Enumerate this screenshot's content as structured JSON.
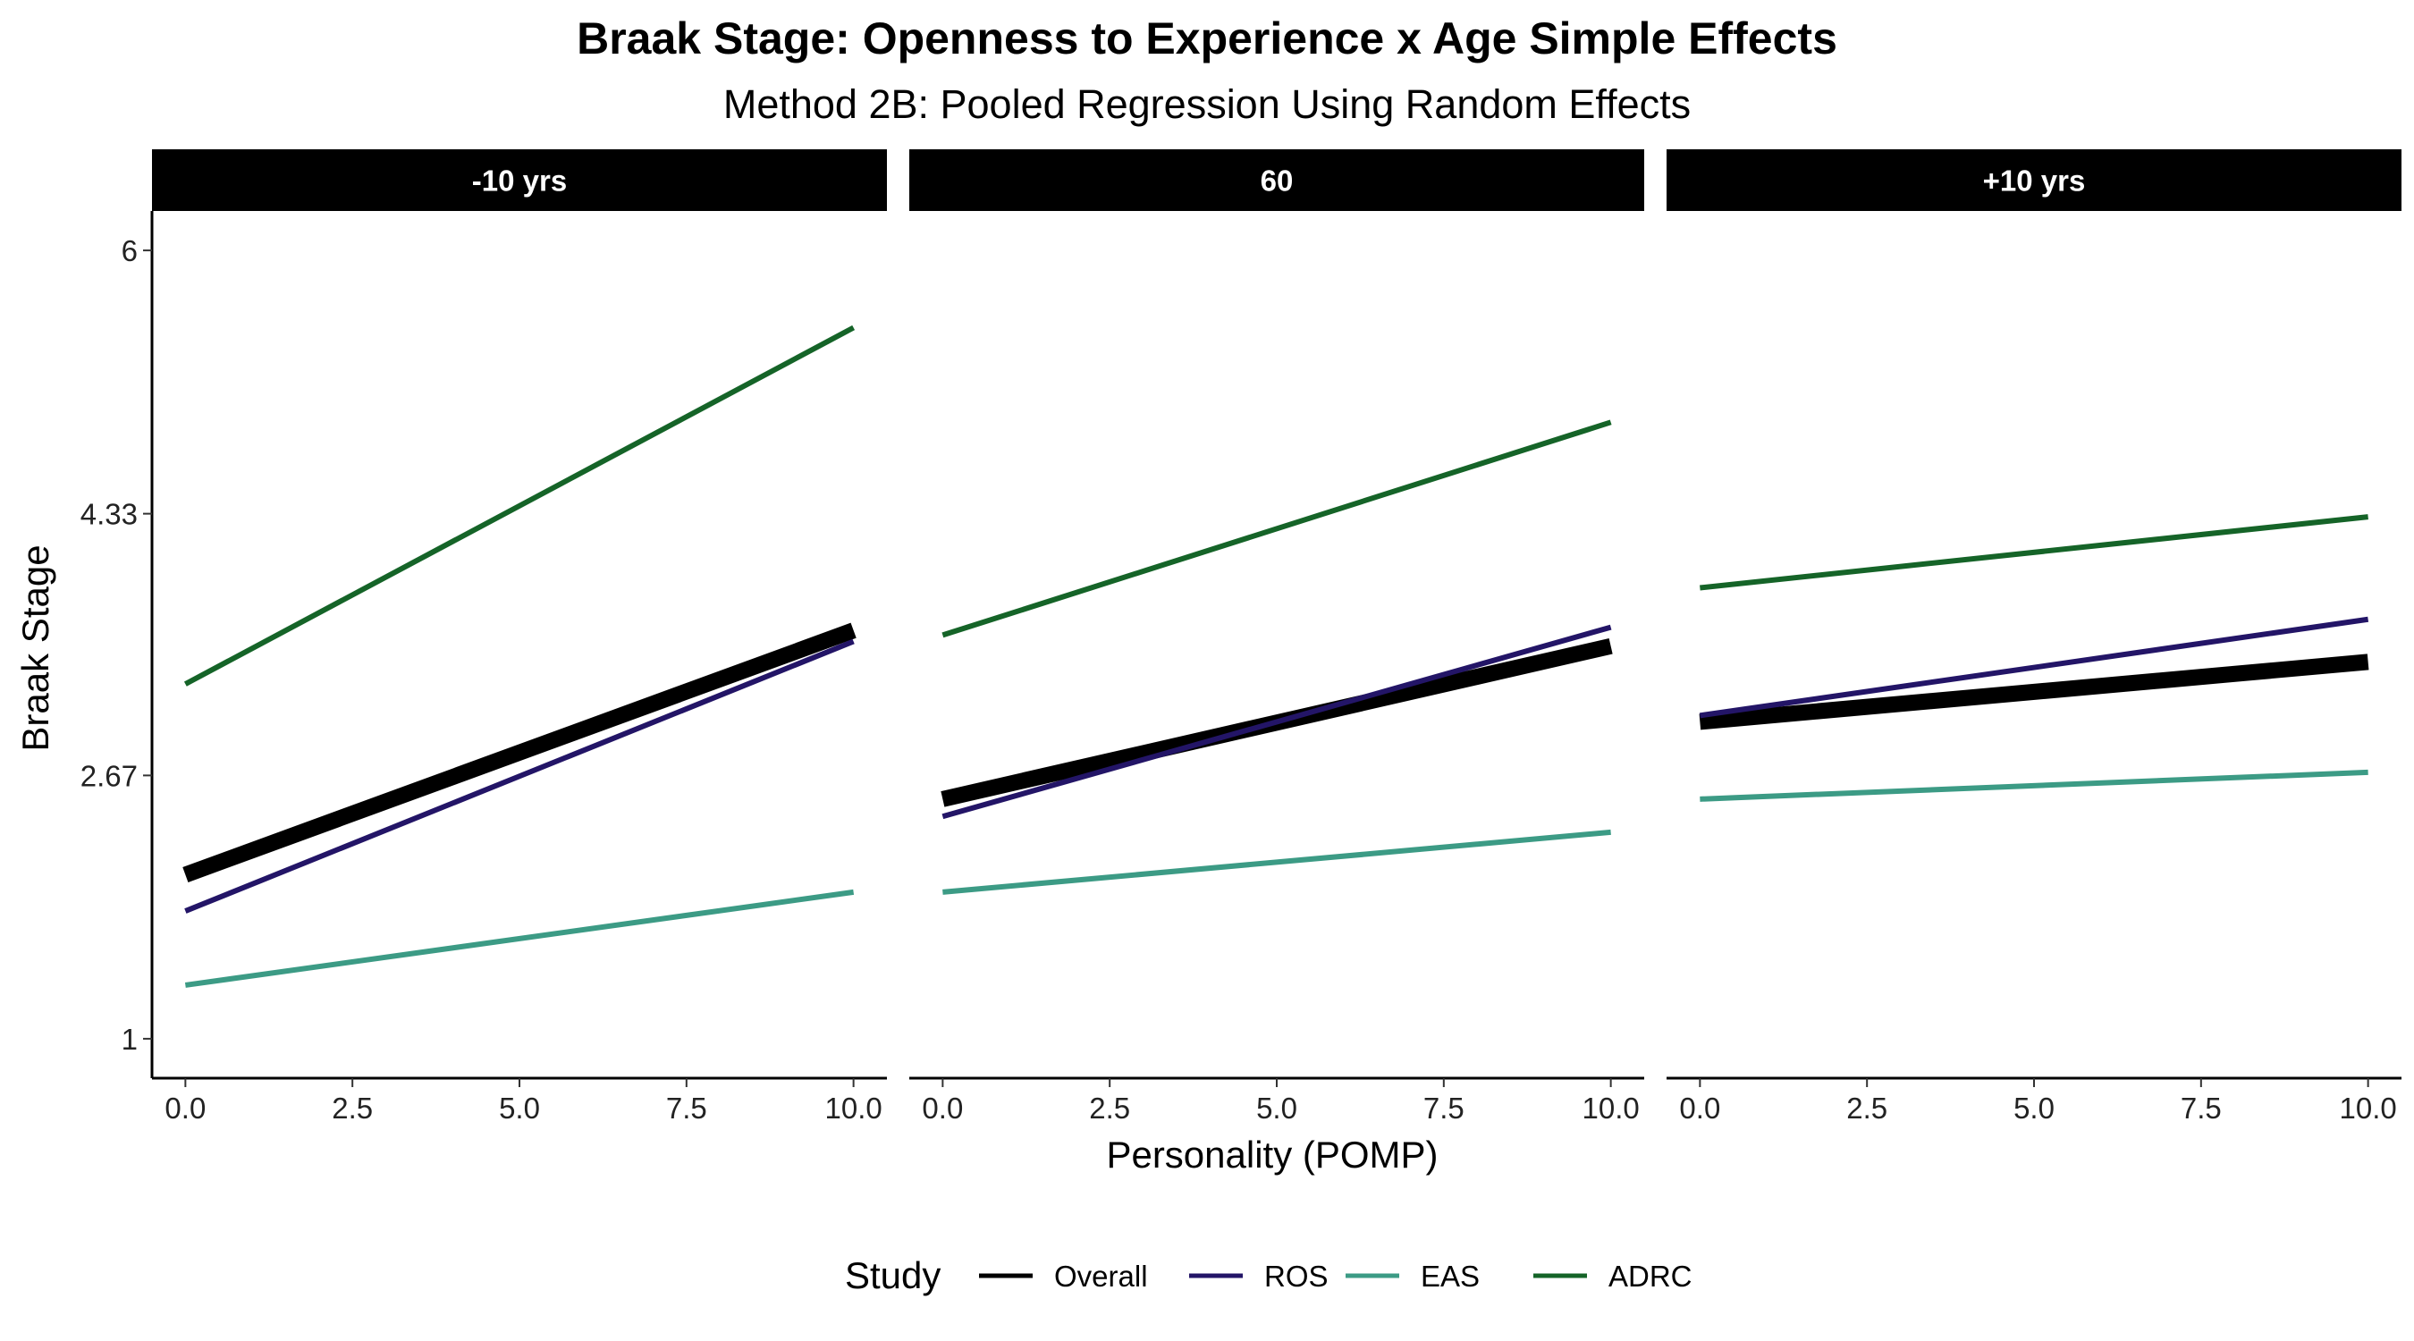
{
  "chart_data": {
    "type": "line",
    "title": "Braak Stage: Openness to Experience x Age Simple Effects",
    "subtitle": "Method 2B: Pooled Regression Using Random Effects",
    "xlabel": "Personality (POMP)",
    "ylabel": "Braak Stage",
    "xlim": [
      -0.5,
      10.5
    ],
    "ylim": [
      0.75,
      6.25
    ],
    "x_ticks": [
      "0.0",
      "2.5",
      "5.0",
      "7.5",
      "10.0"
    ],
    "y_ticks": [
      "1",
      "2.67",
      "4.33",
      "6"
    ],
    "grid": false,
    "legend": {
      "title": "Study",
      "position": "bottom",
      "entries": [
        "Overall",
        "ROS",
        "EAS",
        "ADRC"
      ]
    },
    "colors": {
      "Overall": "#000000",
      "ROS": "#231567",
      "EAS": "#3c9b85",
      "ADRC": "#156428",
      "strip_background": "#000000",
      "strip_text": "#ffffff"
    },
    "panels": [
      {
        "label": "-10 yrs",
        "series": [
          {
            "name": "ADRC",
            "x": [
              0,
              10
            ],
            "y": [
              3.25,
              5.51
            ]
          },
          {
            "name": "Overall",
            "x": [
              0,
              10
            ],
            "y": [
              2.04,
              3.59
            ]
          },
          {
            "name": "ROS",
            "x": [
              0,
              10
            ],
            "y": [
              1.81,
              3.52
            ]
          },
          {
            "name": "EAS",
            "x": [
              0,
              10
            ],
            "y": [
              1.34,
              1.93
            ]
          }
        ]
      },
      {
        "label": "60",
        "series": [
          {
            "name": "ADRC",
            "x": [
              0,
              10
            ],
            "y": [
              3.56,
              4.91
            ]
          },
          {
            "name": "Overall",
            "x": [
              0,
              10
            ],
            "y": [
              2.52,
              3.49
            ]
          },
          {
            "name": "ROS",
            "x": [
              0,
              10
            ],
            "y": [
              2.41,
              3.61
            ]
          },
          {
            "name": "EAS",
            "x": [
              0,
              10
            ],
            "y": [
              1.93,
              2.31
            ]
          }
        ]
      },
      {
        "label": "+10 yrs",
        "series": [
          {
            "name": "ADRC",
            "x": [
              0,
              10
            ],
            "y": [
              3.86,
              4.31
            ]
          },
          {
            "name": "Overall",
            "x": [
              0,
              10
            ],
            "y": [
              3.01,
              3.39
            ]
          },
          {
            "name": "ROS",
            "x": [
              0,
              10
            ],
            "y": [
              3.05,
              3.66
            ]
          },
          {
            "name": "EAS",
            "x": [
              0,
              10
            ],
            "y": [
              2.52,
              2.69
            ]
          }
        ]
      }
    ]
  }
}
